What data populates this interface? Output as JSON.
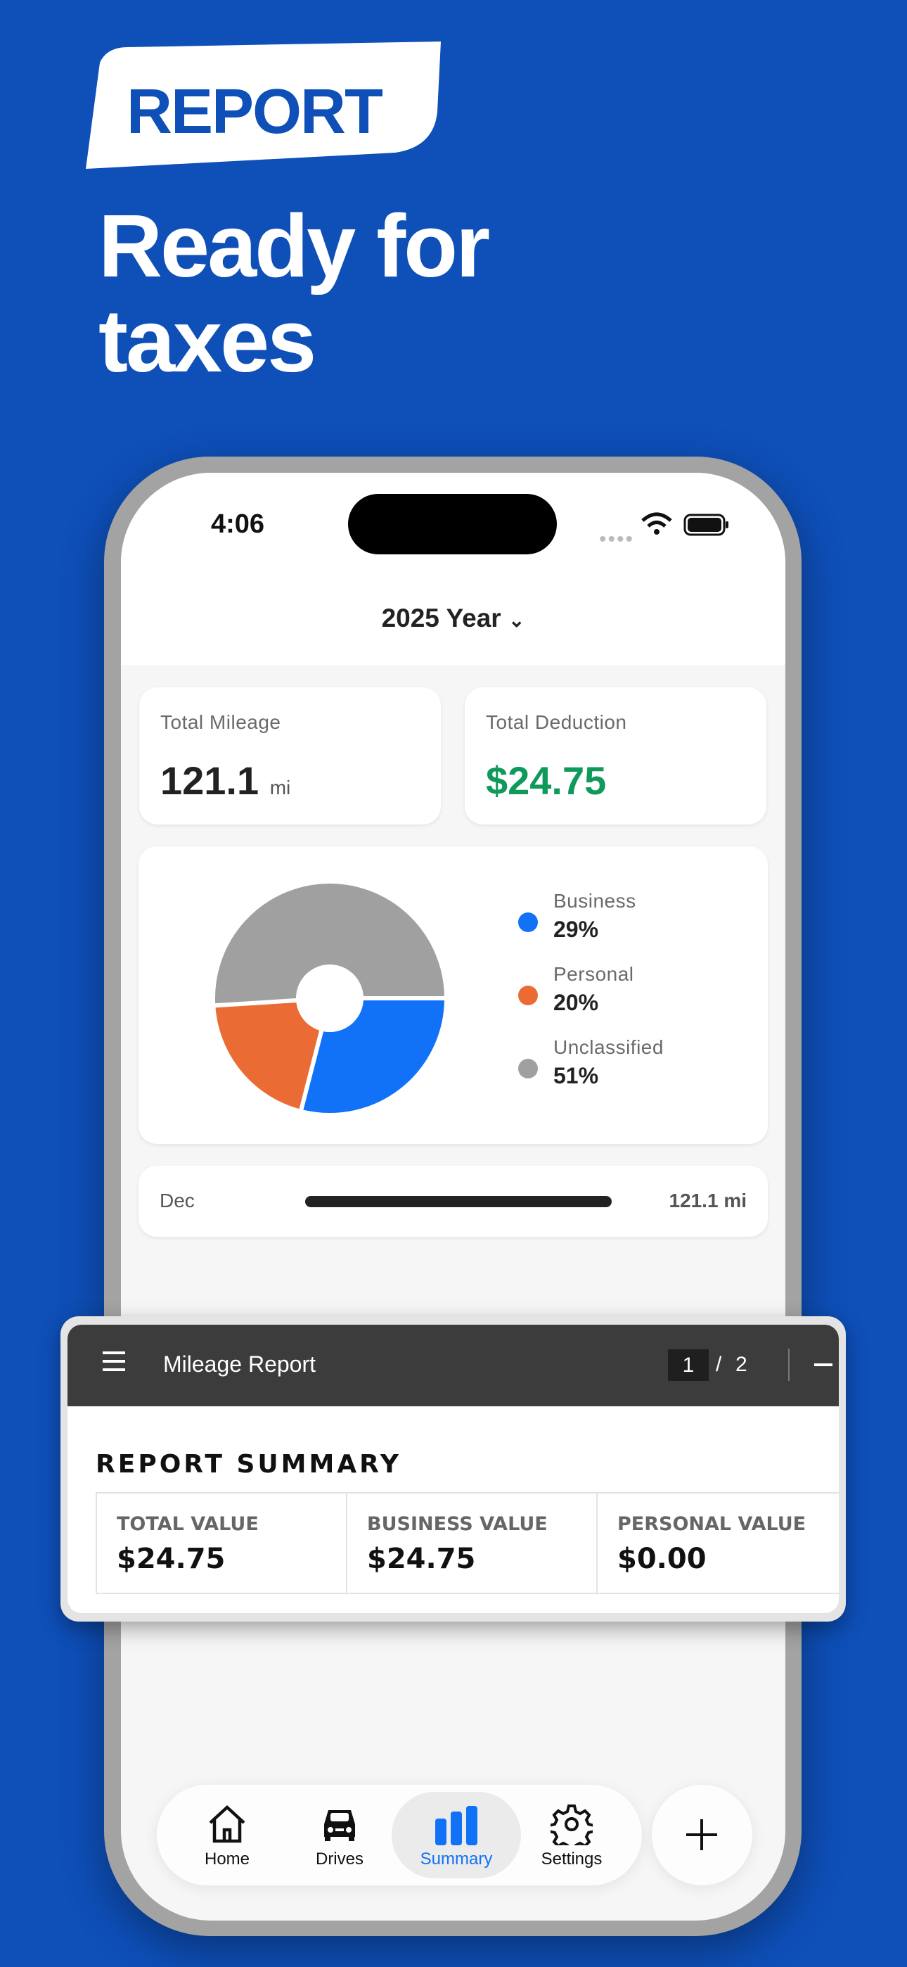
{
  "promo": {
    "badge": "REPORT",
    "headline_line1": "Ready for",
    "headline_line2": "taxes"
  },
  "status_bar": {
    "time": "4:06"
  },
  "header": {
    "period_selector": "2025 Year"
  },
  "stats": {
    "total_mileage_label": "Total Mileage",
    "total_mileage_value": "121.1",
    "total_mileage_unit": "mi",
    "total_deduction_label": "Total Deduction",
    "total_deduction_value": "$24.75"
  },
  "breakdown": {
    "items": [
      {
        "label": "Business",
        "value": "29%",
        "percent": 29,
        "color": "#1172f7"
      },
      {
        "label": "Personal",
        "value": "20%",
        "percent": 20,
        "color": "#ea6c34"
      },
      {
        "label": "Unclassified",
        "value": "51%",
        "percent": 51,
        "color": "#a0a0a0"
      }
    ]
  },
  "monthly": {
    "month": "Dec",
    "value": "121.1 mi",
    "fraction": 1.0
  },
  "report": {
    "title": "Mileage Report",
    "current_page": "1",
    "separator": "/",
    "total_pages": "2",
    "section_title": "REPORT SUMMARY",
    "cells": [
      {
        "label": "TOTAL VALUE",
        "value": "$24.75"
      },
      {
        "label": "BUSINESS VALUE",
        "value": "$24.75"
      },
      {
        "label": "PERSONAL VALUE",
        "value": "$0.00"
      }
    ]
  },
  "tabs": [
    {
      "label": "Home",
      "icon": "home-icon"
    },
    {
      "label": "Drives",
      "icon": "car-icon"
    },
    {
      "label": "Summary",
      "icon": "bar-chart-icon",
      "active": true
    },
    {
      "label": "Settings",
      "icon": "gear-icon"
    }
  ],
  "colors": {
    "accent": "#1172f7",
    "deduction": "#0f9a5c",
    "background": "#0e4fb8"
  }
}
